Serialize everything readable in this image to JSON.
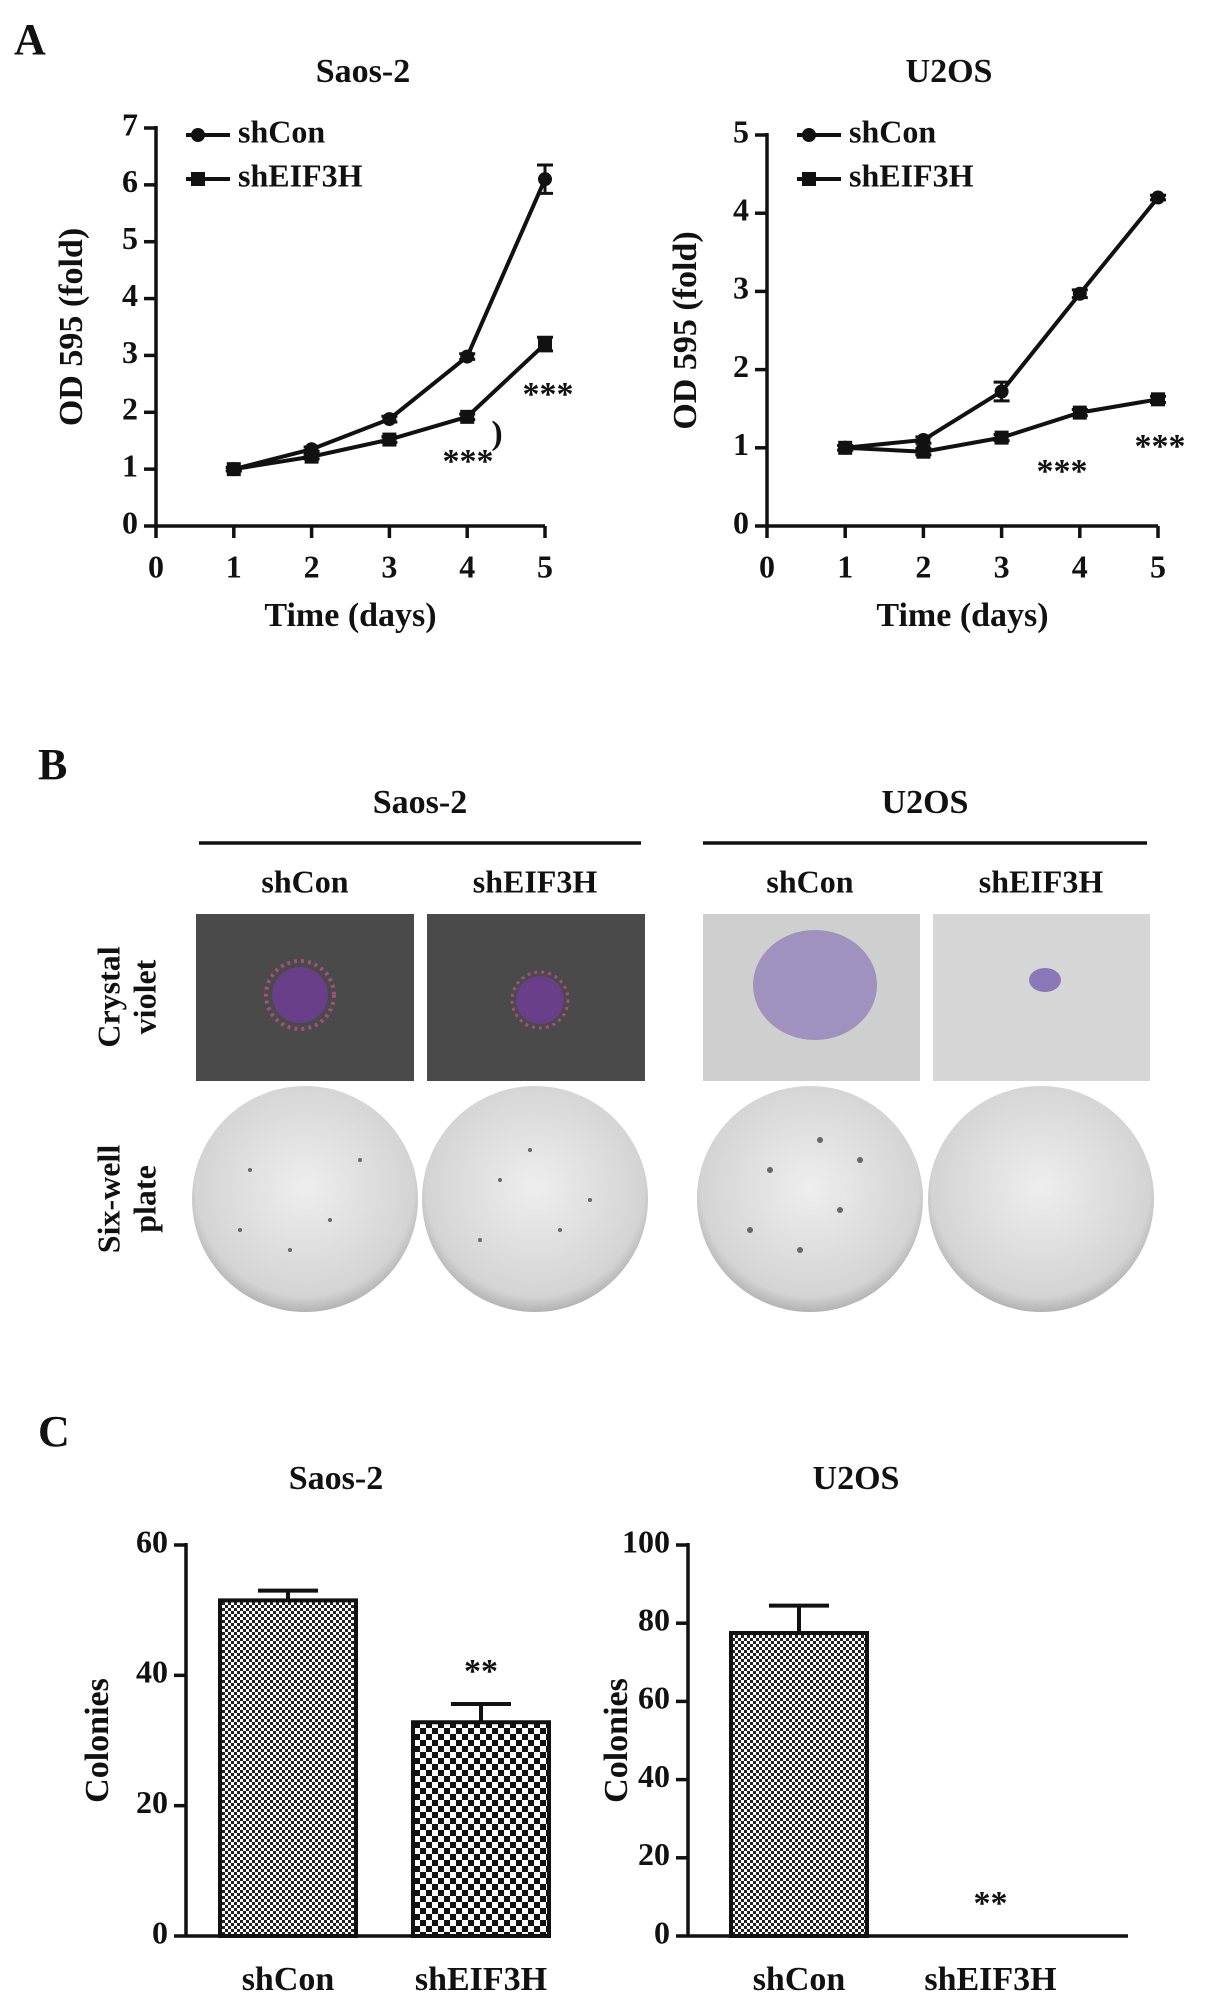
{
  "panel_labels": [
    "A",
    "B",
    "C"
  ],
  "chart_data": [
    {
      "type": "line",
      "title": "Saos-2",
      "x_label": "Time (days)",
      "y_label": "OD 595 (fold)",
      "x": [
        1,
        2,
        3,
        4,
        5
      ],
      "xlim": [
        0,
        5
      ],
      "xticks": [
        0,
        1,
        2,
        3,
        4,
        5
      ],
      "ylim": [
        0,
        7
      ],
      "yticks": [
        0,
        1,
        2,
        3,
        4,
        5,
        6,
        7
      ],
      "series": [
        {
          "name": "shCon",
          "color": "#111111",
          "marker": "circle",
          "values": [
            1,
            1.35,
            1.88,
            2.98,
            6.1
          ],
          "errors": [
            0.03,
            0.04,
            0.05,
            0.05,
            0.25
          ]
        },
        {
          "name": "shEIF3H",
          "color": "#111111",
          "marker": "square",
          "values": [
            1,
            1.22,
            1.52,
            1.92,
            3.2
          ],
          "errors": [
            0.03,
            0.04,
            0.05,
            0.05,
            0.12
          ]
        }
      ],
      "annotations": [
        "***",
        ")",
        "***"
      ]
    },
    {
      "type": "line",
      "title": "U2OS",
      "x_label": "Time (days)",
      "y_label": "OD 595 (fold)",
      "x": [
        1,
        2,
        3,
        4,
        5
      ],
      "xlim": [
        0,
        5
      ],
      "xticks": [
        0,
        1,
        2,
        3,
        4,
        5
      ],
      "ylim": [
        0,
        5
      ],
      "yticks": [
        0,
        1,
        2,
        3,
        4,
        5
      ],
      "series": [
        {
          "name": "shCon",
          "color": "#111111",
          "marker": "circle",
          "values": [
            1,
            1.1,
            1.72,
            2.97,
            4.2
          ],
          "errors": [
            0.03,
            0.04,
            0.12,
            0.05,
            0.03
          ]
        },
        {
          "name": "shEIF3H",
          "color": "#111111",
          "marker": "square",
          "values": [
            1,
            0.95,
            1.13,
            1.45,
            1.62
          ],
          "errors": [
            0.03,
            0.04,
            0.04,
            0.04,
            0.04
          ]
        }
      ],
      "annotations": [
        "***",
        "***"
      ]
    },
    {
      "type": "bar",
      "title": "Saos-2",
      "y_label": "Colonies",
      "categories": [
        "shCon",
        "shEIF3H"
      ],
      "values": [
        51.5,
        32.8
      ],
      "errors": [
        1.5,
        2.8
      ],
      "ylim": [
        0,
        60
      ],
      "yticks": [
        0,
        20,
        40,
        60
      ],
      "annotations": [
        "**"
      ]
    },
    {
      "type": "bar",
      "title": "U2OS",
      "y_label": "Colonies",
      "categories": [
        "shCon",
        "shEIF3H"
      ],
      "values": [
        77.5,
        0
      ],
      "errors": [
        7,
        0
      ],
      "ylim": [
        0,
        100
      ],
      "yticks": [
        0,
        20,
        40,
        60,
        80,
        100
      ],
      "annotations": [
        "**"
      ]
    }
  ],
  "panel_b": {
    "groups": [
      "Saos-2",
      "U2OS"
    ],
    "columns": [
      "shCon",
      "shEIF3H",
      "shCon",
      "shEIF3H"
    ],
    "rows": [
      [
        "Crystal",
        "violet"
      ],
      [
        "Six-well",
        "plate"
      ]
    ]
  }
}
